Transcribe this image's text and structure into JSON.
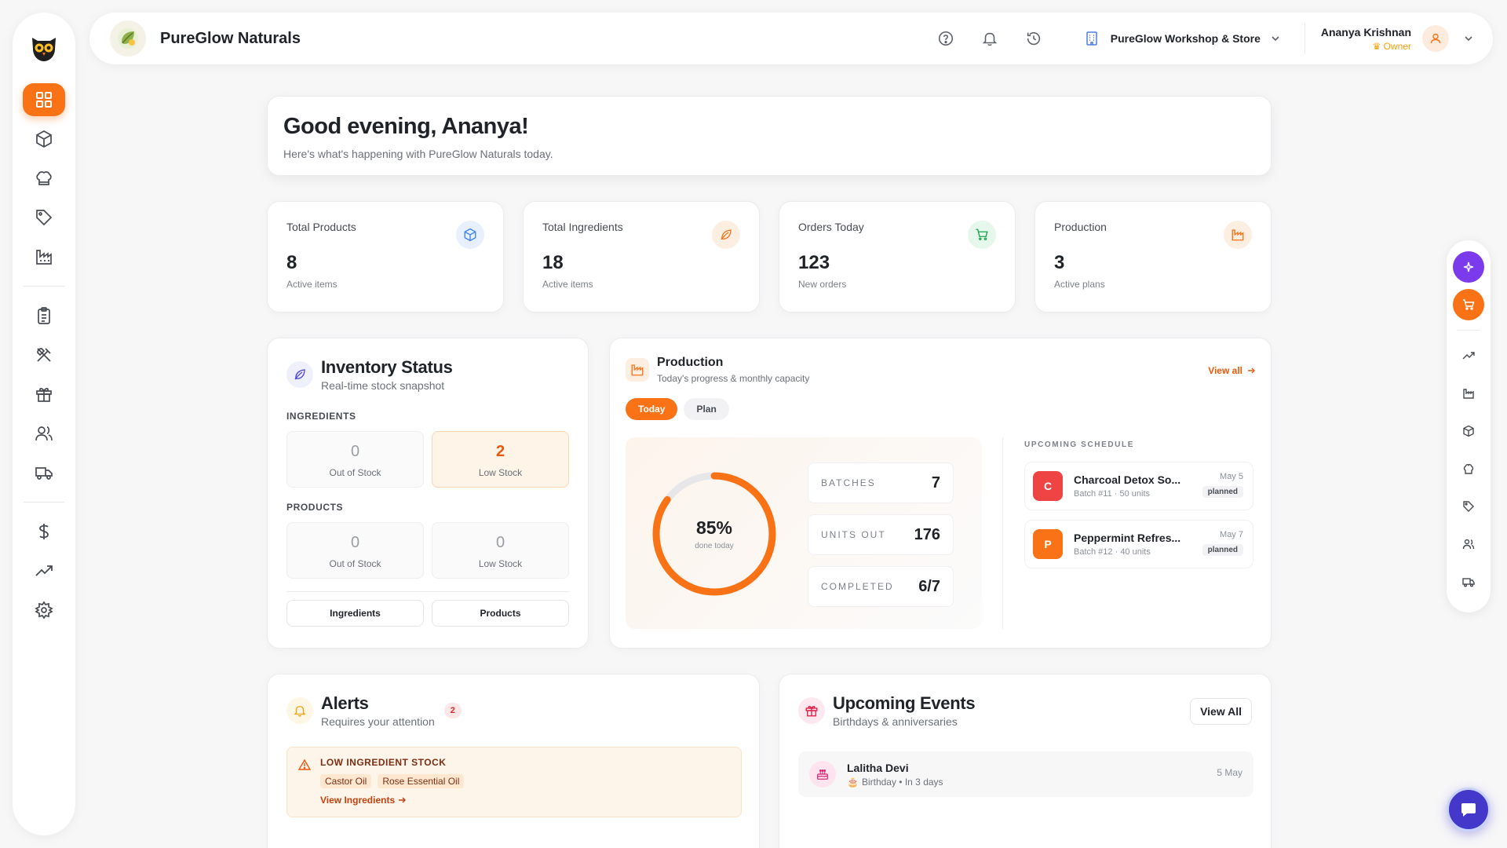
{
  "colors": {
    "accent": "#f97316",
    "page_bg": "#f7f7f8",
    "chat": "#4338ca",
    "ai_fab": "#7c3aed"
  },
  "sidebar": {
    "logo_icon": "owl-logo-icon",
    "items": [
      {
        "name": "dashboard",
        "icon": "grid-icon",
        "active": true
      },
      {
        "name": "products",
        "icon": "box-icon"
      },
      {
        "name": "ingredients",
        "icon": "chef-hat-icon"
      },
      {
        "name": "pricing",
        "icon": "tag-icon"
      },
      {
        "name": "production",
        "icon": "factory-icon"
      },
      {
        "name": "orders",
        "icon": "clipboard-icon"
      },
      {
        "name": "tools",
        "icon": "utensils-crossed-icon"
      },
      {
        "name": "gifts",
        "icon": "gift-icon"
      },
      {
        "name": "customers",
        "icon": "users-icon"
      },
      {
        "name": "shipping",
        "icon": "truck-icon"
      },
      {
        "name": "finance",
        "icon": "dollar-icon"
      },
      {
        "name": "analytics",
        "icon": "trend-up-icon"
      },
      {
        "name": "settings",
        "icon": "gear-icon"
      }
    ]
  },
  "header": {
    "brand": "PureGlow Naturals",
    "store": "PureGlow Workshop & Store",
    "user_name": "Ananya Krishnan",
    "user_role": "Owner"
  },
  "greeting": {
    "title": "Good evening, Ananya!",
    "subtitle": "Here's what's happening with PureGlow Naturals today."
  },
  "stats": [
    {
      "label": "Total Products",
      "value": "8",
      "sub": "Active items",
      "icon": "cube-icon"
    },
    {
      "label": "Total Ingredients",
      "value": "18",
      "sub": "Active items",
      "icon": "leaf-icon"
    },
    {
      "label": "Orders Today",
      "value": "123",
      "sub": "New orders",
      "icon": "cart-icon"
    },
    {
      "label": "Production",
      "value": "3",
      "sub": "Active plans",
      "icon": "factory-icon"
    }
  ],
  "inventory": {
    "title": "Inventory Status",
    "subtitle": "Real-time stock snapshot",
    "ingredients_label": "INGREDIENTS",
    "products_label": "PRODUCTS",
    "ingredients": {
      "out": "0",
      "out_label": "Out of Stock",
      "low": "2",
      "low_label": "Low Stock"
    },
    "products": {
      "out": "0",
      "out_label": "Out of Stock",
      "low": "0",
      "low_label": "Low Stock"
    },
    "buttons": {
      "ingredients": "Ingredients",
      "products": "Products"
    }
  },
  "production": {
    "title": "Production",
    "subtitle": "Today's progress & monthly capacity",
    "view_all": "View all",
    "tabs": {
      "today": "Today",
      "plan": "Plan"
    },
    "progress_pct": 85,
    "progress_text": "85%",
    "progress_label": "done today",
    "metrics": [
      {
        "key": "BATCHES",
        "value": "7"
      },
      {
        "key": "UNITS OUT",
        "value": "176"
      },
      {
        "key": "COMPLETED",
        "value": "6/7"
      }
    ],
    "schedule_label": "UPCOMING SCHEDULE",
    "schedule": [
      {
        "initial": "C",
        "name": "Charcoal Detox So...",
        "sub": "Batch #11 · 50 units",
        "date": "May 5",
        "status": "planned",
        "color": "#ef4444"
      },
      {
        "initial": "P",
        "name": "Peppermint Refres...",
        "sub": "Batch #12 · 40 units",
        "date": "May 7",
        "status": "planned",
        "color": "#f97316"
      }
    ]
  },
  "alerts": {
    "title": "Alerts",
    "subtitle": "Requires your attention",
    "count": "2",
    "item_title": "LOW INGREDIENT STOCK",
    "chips": [
      "Castor Oil",
      "Rose Essential Oil"
    ],
    "link": "View Ingredients"
  },
  "events": {
    "title": "Upcoming Events",
    "subtitle": "Birthdays & anniversaries",
    "view_all": "View All",
    "item": {
      "name": "Lalitha Devi",
      "sub": "Birthday • In 3 days",
      "date": "5 May"
    }
  }
}
